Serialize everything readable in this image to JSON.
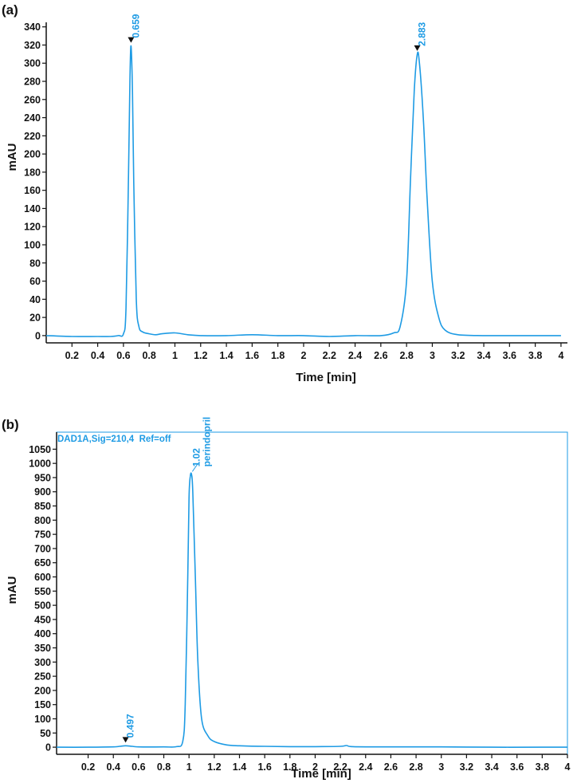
{
  "figure": {
    "panel_a_label": "(a)",
    "panel_b_label": "(b)"
  },
  "colors": {
    "trace": "#1e9be4",
    "axis": "#111111",
    "marker": "#111111"
  },
  "chart_data": [
    {
      "type": "line",
      "panel": "(a)",
      "title": "",
      "xlabel": "Time [min]",
      "ylabel": "mAU",
      "xlim": [
        0,
        4.05
      ],
      "ylim": [
        -8,
        345
      ],
      "x_ticks": [
        0.2,
        0.4,
        0.6,
        0.8,
        1,
        1.2,
        1.4,
        1.6,
        1.8,
        2,
        2.2,
        2.4,
        2.6,
        2.8,
        3,
        3.2,
        3.4,
        3.6,
        3.8,
        4
      ],
      "x_tick_labels": [
        "0.2",
        "0.4",
        "0.6",
        "0.8",
        "1",
        "1.2",
        "1.4",
        "1.6",
        "1.8",
        "2",
        "2.2",
        "2.4",
        "2.6",
        "2.8",
        "3",
        "3.2",
        "3.4",
        "3.6",
        "3.8",
        "4"
      ],
      "y_ticks": [
        0,
        20,
        40,
        60,
        80,
        100,
        120,
        140,
        160,
        180,
        200,
        220,
        240,
        260,
        280,
        300,
        320,
        340
      ],
      "y_tick_labels": [
        "0",
        "20",
        "40",
        "60",
        "80",
        "100",
        "120",
        "140",
        "160",
        "180",
        "200",
        "220",
        "240",
        "260",
        "280",
        "300",
        "320",
        "340"
      ],
      "grid": false,
      "header": "",
      "peaks": [
        {
          "label": "0.659",
          "rt": 0.659,
          "height": 319,
          "marker": "triangle"
        },
        {
          "label": "2.883",
          "rt": 2.883,
          "height": 310,
          "marker": "triangle"
        }
      ],
      "series": [
        {
          "x": [
            0,
            0.2,
            0.4,
            0.5,
            0.56,
            0.6,
            0.62,
            0.64,
            0.65,
            0.659,
            0.67,
            0.68,
            0.7,
            0.72,
            0.75,
            0.8,
            0.85,
            0.9,
            1.0,
            1.1,
            1.2,
            1.4,
            1.6,
            1.8,
            2.0,
            2.2,
            2.4,
            2.6,
            2.7,
            2.75,
            2.8,
            2.83,
            2.86,
            2.883,
            2.9,
            2.93,
            2.96,
            3.0,
            3.05,
            3.1,
            3.2,
            3.4,
            3.6,
            3.8,
            4.0
          ],
          "values": [
            0,
            -1,
            -1,
            -1,
            0,
            2,
            30,
            180,
            280,
            319,
            270,
            170,
            40,
            10,
            4,
            2,
            1,
            2,
            3,
            1,
            0,
            0,
            1,
            0,
            0,
            -1,
            0,
            0,
            3,
            10,
            60,
            170,
            270,
            310,
            300,
            240,
            150,
            60,
            20,
            6,
            1,
            0,
            0,
            0,
            0
          ]
        }
      ]
    },
    {
      "type": "line",
      "panel": "(b)",
      "title": "",
      "xlabel": "Time [min]",
      "ylabel": "mAU",
      "xlim": [
        -0.05,
        4
      ],
      "ylim": [
        -25,
        1110
      ],
      "x_ticks": [
        0.2,
        0.4,
        0.6,
        0.8,
        1,
        1.2,
        1.4,
        1.6,
        1.8,
        2,
        2.2,
        2.4,
        2.6,
        2.8,
        3,
        3.2,
        3.4,
        3.6,
        3.8,
        4
      ],
      "x_tick_labels": [
        "0.2",
        "0.4",
        "0.6",
        "0.8",
        "1",
        "1.2",
        "1.4",
        "1.6",
        "1.8",
        "2",
        "2.2",
        "2.4",
        "2.6",
        "2.8",
        "3",
        "3.2",
        "3.4",
        "3.6",
        "3.8",
        "4"
      ],
      "y_ticks": [
        0,
        50,
        100,
        150,
        200,
        250,
        300,
        350,
        400,
        450,
        500,
        550,
        600,
        650,
        700,
        750,
        800,
        850,
        900,
        950,
        1000,
        1050
      ],
      "y_tick_labels": [
        "0",
        "50",
        "100",
        "150",
        "200",
        "250",
        "300",
        "350",
        "400",
        "450",
        "500",
        "550",
        "600",
        "650",
        "700",
        "750",
        "800",
        "850",
        "900",
        "950",
        "1000",
        "1050"
      ],
      "grid": false,
      "header": "DAD1A,Sig=210,4  Ref=off",
      "peaks": [
        {
          "label": "0.497",
          "rt": 0.497,
          "height": 5,
          "marker": "triangle"
        },
        {
          "label": "1.02",
          "rt": 1.02,
          "height": 960,
          "marker": "none",
          "name": "perindopril"
        }
      ],
      "series": [
        {
          "x": [
            -0.05,
            0.2,
            0.4,
            0.45,
            0.497,
            0.55,
            0.6,
            0.8,
            0.9,
            0.95,
            0.97,
            0.99,
            1.0,
            1.01,
            1.02,
            1.03,
            1.05,
            1.07,
            1.1,
            1.15,
            1.2,
            1.3,
            1.4,
            1.6,
            1.8,
            2.0,
            2.2,
            2.25,
            2.3,
            2.6,
            3.0,
            3.4,
            3.8,
            4.0
          ],
          "values": [
            0,
            0,
            1,
            3,
            5,
            3,
            1,
            1,
            2,
            20,
            150,
            600,
            880,
            955,
            960,
            900,
            600,
            300,
            100,
            40,
            20,
            8,
            5,
            3,
            2,
            2,
            3,
            6,
            2,
            1,
            1,
            0,
            0,
            0
          ]
        }
      ]
    }
  ]
}
